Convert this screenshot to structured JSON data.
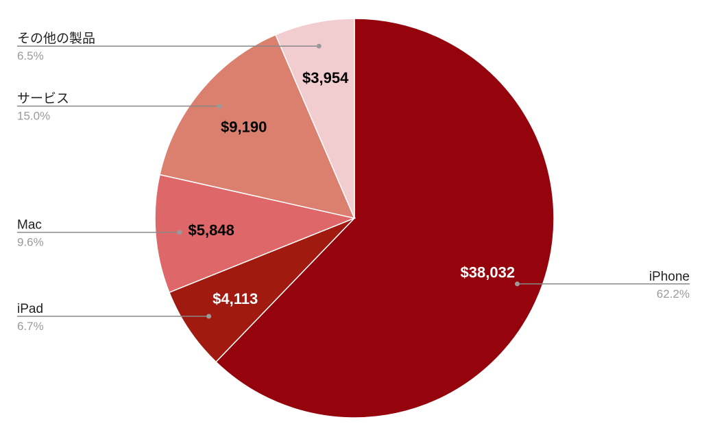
{
  "chart_data": {
    "type": "pie",
    "title": "",
    "slices": [
      {
        "name": "iPhone",
        "value": 38032,
        "value_label": "$38,032",
        "percent_label": "62.2%",
        "color": "#95030c",
        "label_color": "#ffffff",
        "legend_side": "right"
      },
      {
        "name": "iPad",
        "value": 4113,
        "value_label": "$4,113",
        "percent_label": "6.7%",
        "color": "#a01a10",
        "label_color": "#ffffff",
        "legend_side": "left"
      },
      {
        "name": "Mac",
        "value": 5848,
        "value_label": "$5,848",
        "percent_label": "9.6%",
        "color": "#de6869",
        "label_color": "#000000",
        "legend_side": "left"
      },
      {
        "name": "サービス",
        "value": 9190,
        "value_label": "$9,190",
        "percent_label": "15.0%",
        "color": "#db7f6e",
        "label_color": "#000000",
        "legend_side": "left"
      },
      {
        "name": "その他の製品",
        "value": 3954,
        "value_label": "$3,954",
        "percent_label": "6.5%",
        "color": "#f2cdcf",
        "label_color": "#000000",
        "legend_side": "left"
      }
    ],
    "start_angle": "12 o'clock",
    "direction": "clockwise",
    "legend_placement": "callouts",
    "slice_border_color": "#ffffff",
    "leader_color": "#888888"
  }
}
